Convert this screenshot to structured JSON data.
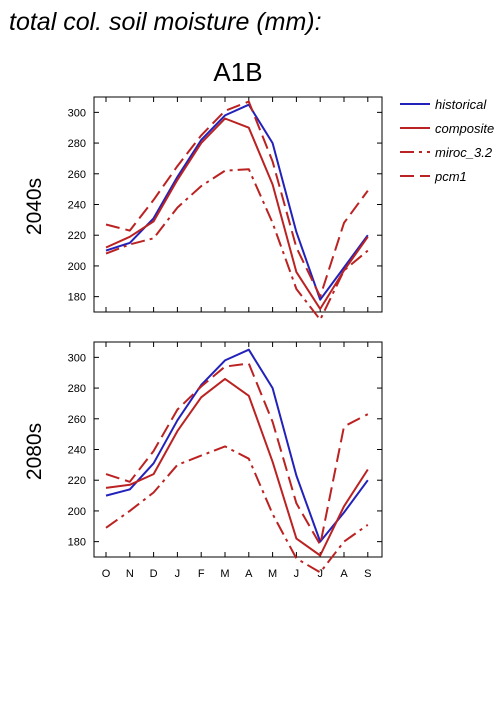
{
  "figure": {
    "title": "total col. soil moisture (mm):",
    "scenario": "A1B"
  },
  "legend": {
    "placement": "right",
    "items": [
      {
        "label": "historical",
        "color": "#2222bb",
        "dash": "solid"
      },
      {
        "label": "composite",
        "color": "#bb2222",
        "dash": "solid"
      },
      {
        "label": "miroc_3.2",
        "color": "#bb2222",
        "dash": "dashdot"
      },
      {
        "label": "pcm1",
        "color": "#bb2222",
        "dash": "dashed"
      }
    ]
  },
  "chart_data": [
    {
      "type": "line",
      "panel_label": "2040s",
      "categories": [
        "O",
        "N",
        "D",
        "J",
        "F",
        "M",
        "A",
        "M",
        "J",
        "J",
        "A",
        "S"
      ],
      "ylim": [
        170,
        310
      ],
      "yticks": [
        180,
        200,
        220,
        240,
        260,
        280,
        300
      ],
      "series": [
        {
          "name": "historical",
          "color": "#2222bb",
          "dash": "solid",
          "values": [
            210,
            215,
            231,
            258,
            282,
            298,
            305,
            280,
            222,
            178,
            199,
            220
          ]
        },
        {
          "name": "composite",
          "color": "#bb2222",
          "dash": "solid",
          "values": [
            212,
            219,
            229,
            256,
            280,
            296,
            290,
            253,
            196,
            172,
            197,
            219
          ]
        },
        {
          "name": "miroc_3.2",
          "color": "#bb2222",
          "dash": "dashdot",
          "values": [
            208,
            214,
            218,
            238,
            252,
            262,
            263,
            228,
            185,
            165,
            197,
            210
          ]
        },
        {
          "name": "pcm1",
          "color": "#bb2222",
          "dash": "dashed",
          "values": [
            227,
            223,
            243,
            265,
            285,
            301,
            307,
            268,
            212,
            180,
            228,
            249
          ]
        }
      ]
    },
    {
      "type": "line",
      "panel_label": "2080s",
      "categories": [
        "O",
        "N",
        "D",
        "J",
        "F",
        "M",
        "A",
        "M",
        "J",
        "J",
        "A",
        "S"
      ],
      "ylim": [
        170,
        310
      ],
      "yticks": [
        180,
        200,
        220,
        240,
        260,
        280,
        300
      ],
      "series": [
        {
          "name": "historical",
          "color": "#2222bb",
          "dash": "solid",
          "values": [
            210,
            214,
            231,
            259,
            282,
            298,
            305,
            280,
            223,
            180,
            199,
            220
          ]
        },
        {
          "name": "composite",
          "color": "#bb2222",
          "dash": "solid",
          "values": [
            215,
            217,
            224,
            252,
            274,
            286,
            275,
            232,
            182,
            171,
            203,
            227
          ]
        },
        {
          "name": "miroc_3.2",
          "color": "#bb2222",
          "dash": "dashdot",
          "values": [
            189,
            200,
            212,
            230,
            236,
            242,
            234,
            198,
            169,
            160,
            180,
            191
          ]
        },
        {
          "name": "pcm1",
          "color": "#bb2222",
          "dash": "dashed",
          "values": [
            224,
            219,
            239,
            266,
            281,
            294,
            296,
            258,
            205,
            178,
            255,
            263
          ]
        }
      ]
    }
  ]
}
